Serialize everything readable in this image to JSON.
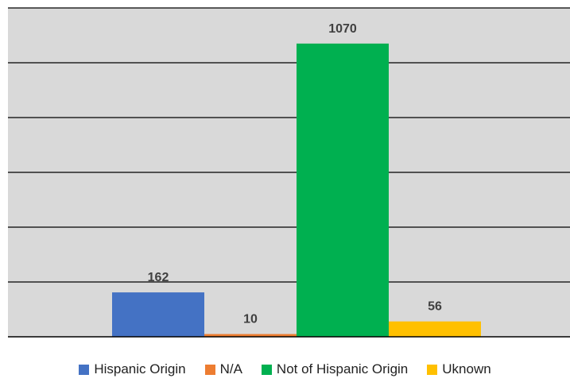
{
  "chart_data": {
    "type": "bar",
    "categories": [
      "Hispanic Origin",
      "N/A",
      "Not of Hispanic Origin",
      "Uknown"
    ],
    "values": [
      162,
      10,
      1070,
      56
    ],
    "colors": [
      "#4472C4",
      "#ED7D31",
      "#00B050",
      "#FFC000"
    ],
    "title": "",
    "xlabel": "",
    "ylabel": "",
    "ylim": [
      0,
      1200
    ],
    "grid": true,
    "legend": "bottom",
    "plot_background": "#D9D9D9"
  }
}
